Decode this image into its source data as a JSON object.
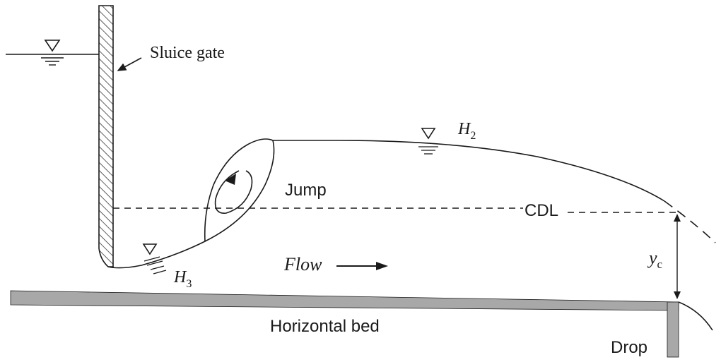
{
  "labels": {
    "sluice_gate": "Sluice gate",
    "h2": "H",
    "h2_sub": "2",
    "h3": "H",
    "h3_sub": "3",
    "jump": "Jump",
    "cdl": "CDL",
    "flow": "Flow",
    "yc": "y",
    "yc_sub": "c",
    "horizontal_bed": "Horizontal bed",
    "drop": "Drop"
  },
  "colors": {
    "ink": "#1a1a1a",
    "bed_fill": "#a8a8a8",
    "background": "#ffffff"
  },
  "icons": {
    "water_surface_marker": "inverted-triangle-with-lines",
    "flow_arrow": "right-arrow"
  }
}
